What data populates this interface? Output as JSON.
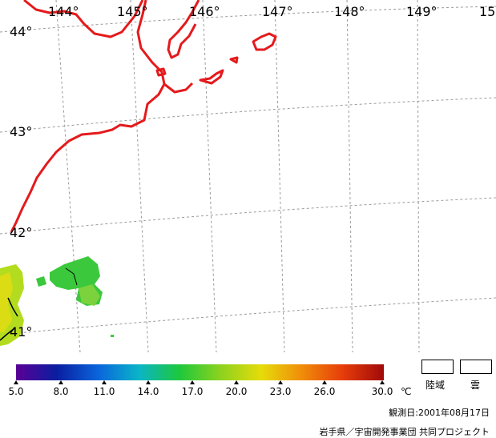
{
  "map": {
    "longitude_labels": [
      "144°",
      "145°",
      "146°",
      "147°",
      "148°",
      "149°",
      "15"
    ],
    "latitude_labels": [
      "44°",
      "43°",
      "42°",
      "41°"
    ],
    "colors": {
      "coastline": "#e41a1c",
      "graticule": "#9a9a9a"
    }
  },
  "legend": {
    "colorscale": [
      "#5b0096",
      "#0a1ea0",
      "#0a64dc",
      "#0ab4c8",
      "#1ec83c",
      "#8cd21e",
      "#e6dc0a",
      "#f08c0a",
      "#e63c0a",
      "#a00a0a"
    ],
    "tick_labels": [
      "5.0",
      "8.0",
      "11.0",
      "14.0",
      "17.0",
      "20.0",
      "23.0",
      "26.0",
      "30.0"
    ],
    "unit": "℃",
    "land_label": "陸域",
    "cloud_label": "雲"
  },
  "footer": {
    "date": "観測日:2001年08月17日",
    "credit": "岩手県／宇宙開発事業団 共同プロジェクト"
  }
}
